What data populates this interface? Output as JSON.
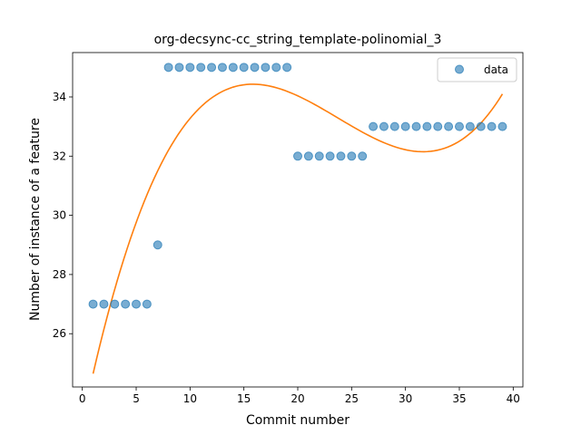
{
  "chart_data": {
    "type": "scatter",
    "title": "org-decsync-cc_string_template-polinomial_3",
    "xlabel": "Commit number",
    "ylabel": "Number of instance of a feature",
    "xlim": [
      -0.9,
      40.9
    ],
    "ylim": [
      24.2,
      35.5
    ],
    "xticks": [
      0,
      5,
      10,
      15,
      20,
      25,
      30,
      35,
      40
    ],
    "yticks": [
      26,
      28,
      30,
      32,
      34
    ],
    "grid": false,
    "legend_position": "top-right",
    "series": [
      {
        "name": "data",
        "kind": "scatter",
        "color": "#1f77b4",
        "x": [
          1,
          2,
          3,
          4,
          5,
          6,
          7,
          8,
          9,
          10,
          11,
          12,
          13,
          14,
          15,
          16,
          17,
          18,
          19,
          20,
          21,
          22,
          23,
          24,
          25,
          26,
          27,
          28,
          29,
          30,
          31,
          32,
          33,
          34,
          35,
          36,
          37,
          38,
          39
        ],
        "y": [
          27,
          27,
          27,
          27,
          27,
          27,
          29,
          35,
          35,
          35,
          35,
          35,
          35,
          35,
          35,
          35,
          35,
          35,
          35,
          32,
          32,
          32,
          32,
          32,
          32,
          32,
          33,
          33,
          33,
          33,
          33,
          33,
          33,
          33,
          33,
          33,
          33,
          33,
          33
        ]
      },
      {
        "kind": "line",
        "color": "#ff7f0e",
        "polynomial_degree": 3,
        "x_range": [
          1,
          39
        ],
        "anchor_points": [
          [
            1,
            24.65
          ],
          [
            16,
            34.43
          ],
          [
            31.5,
            32.15
          ],
          [
            39,
            34.1
          ]
        ]
      }
    ]
  }
}
